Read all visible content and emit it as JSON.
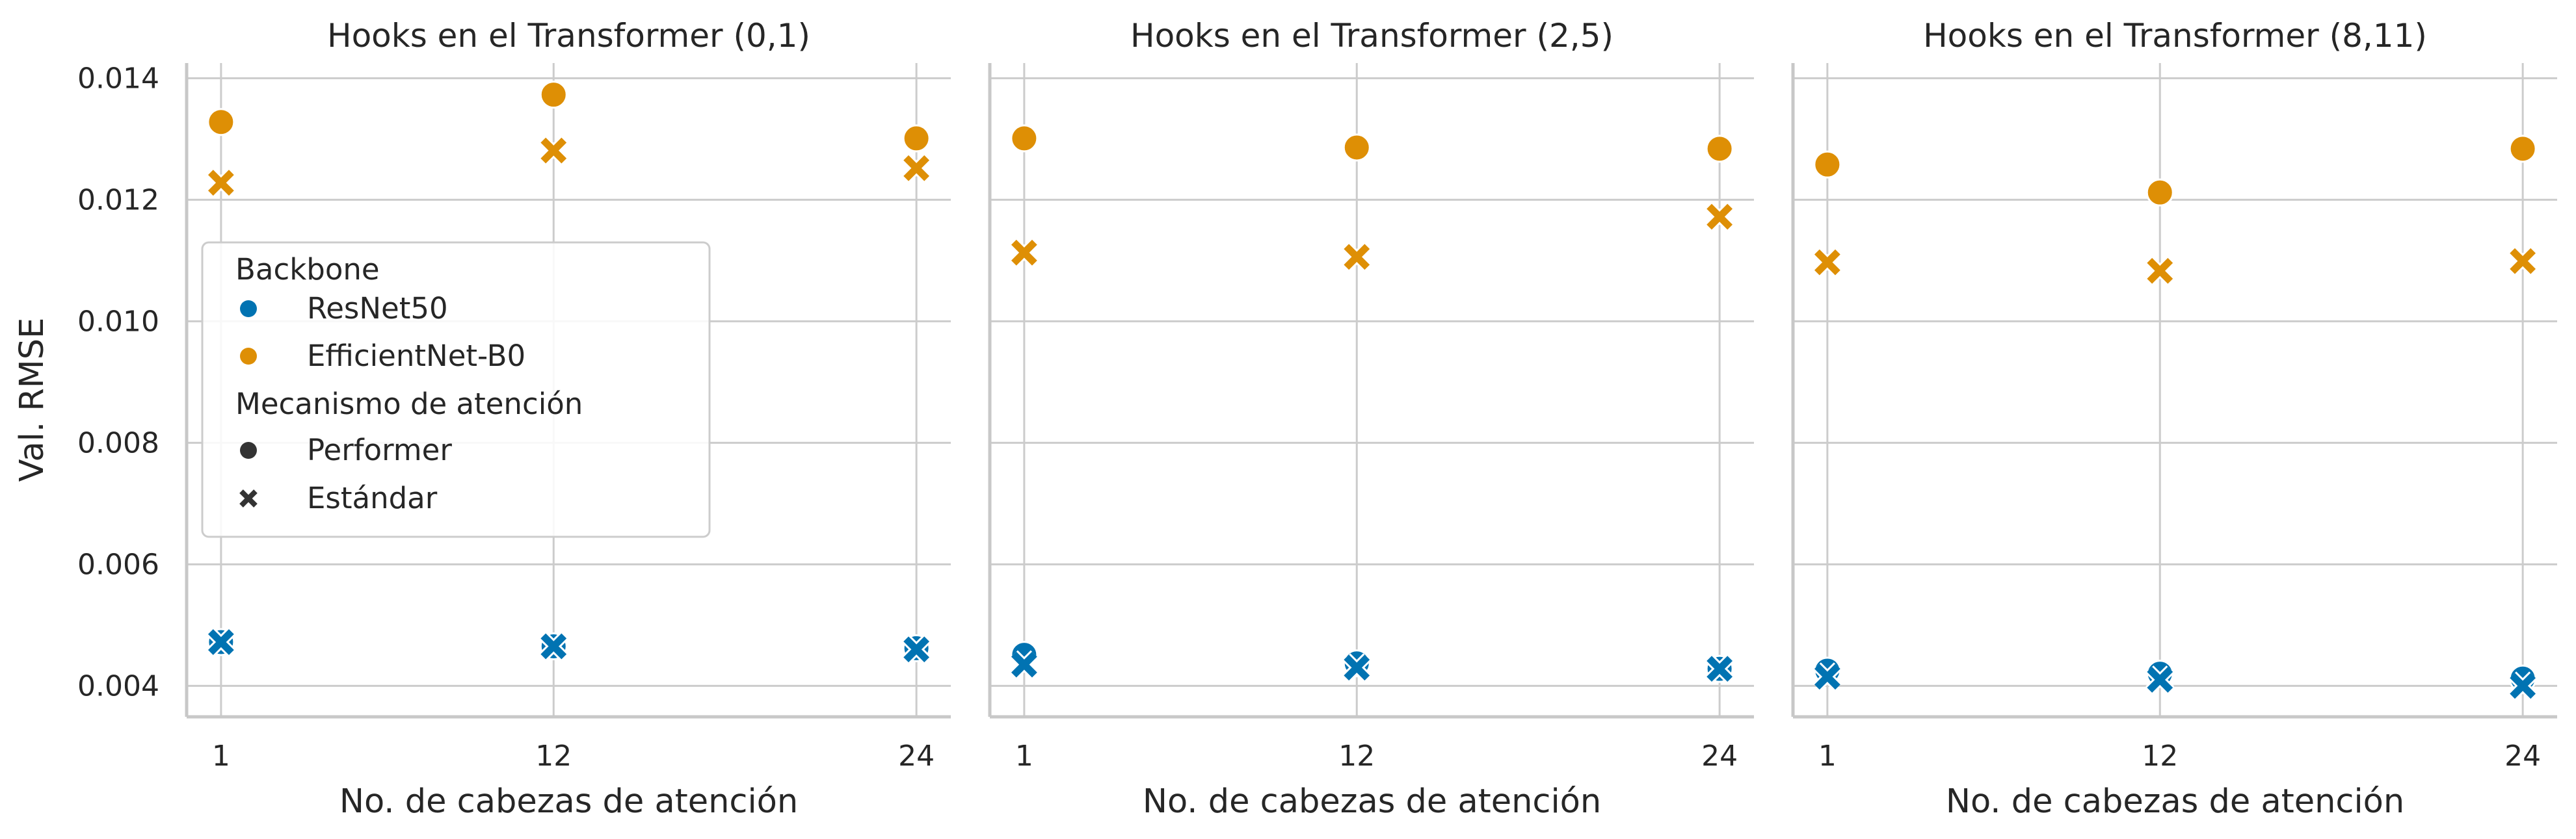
{
  "chart_data": {
    "type": "scatter",
    "ylabel": "Val. RMSE",
    "xlabel": "No. de cabezas de atención",
    "x_ticks": [
      1,
      12,
      24
    ],
    "y_ticks": [
      0.004,
      0.006,
      0.008,
      0.01,
      0.012,
      0.014
    ],
    "y_tick_labels": [
      "0.004",
      "0.006",
      "0.008",
      "0.010",
      "0.012",
      "0.014"
    ],
    "ylim": [
      0.00349,
      0.01425
    ],
    "grid": true,
    "colors": {
      "ResNet50": "#0173b2",
      "EfficientNet-B0": "#de8f05"
    },
    "legend": {
      "placement": "inside-left of first panel",
      "hue_title": "Backbone",
      "hue_items": [
        {
          "label": "ResNet50",
          "color": "#0173b2"
        },
        {
          "label": "EfficientNet-B0",
          "color": "#de8f05"
        }
      ],
      "style_title": "Mecanismo de atención",
      "style_items": [
        {
          "label": "Performer",
          "marker": "circle"
        },
        {
          "label": "Estándar",
          "marker": "x"
        }
      ]
    },
    "panels": [
      {
        "title": "Hooks en el Transformer (0,1)",
        "series": [
          {
            "backbone": "EfficientNet-B0",
            "mechanism": "Performer",
            "x": [
              1,
              12,
              24
            ],
            "y": [
              0.01328,
              0.01373,
              0.01301
            ]
          },
          {
            "backbone": "EfficientNet-B0",
            "mechanism": "Estándar",
            "x": [
              1,
              12,
              24
            ],
            "y": [
              0.01228,
              0.01281,
              0.01252
            ]
          },
          {
            "backbone": "ResNet50",
            "mechanism": "Performer",
            "x": [
              1,
              12,
              24
            ],
            "y": [
              0.00472,
              0.00465,
              0.00462
            ]
          },
          {
            "backbone": "ResNet50",
            "mechanism": "Estándar",
            "x": [
              1,
              12,
              24
            ],
            "y": [
              0.00472,
              0.00465,
              0.0046
            ]
          }
        ]
      },
      {
        "title": "Hooks en el Transformer (2,5)",
        "series": [
          {
            "backbone": "EfficientNet-B0",
            "mechanism": "Performer",
            "x": [
              1,
              12,
              24
            ],
            "y": [
              0.01301,
              0.01286,
              0.01284
            ]
          },
          {
            "backbone": "EfficientNet-B0",
            "mechanism": "Estándar",
            "x": [
              1,
              12,
              24
            ],
            "y": [
              0.01113,
              0.01106,
              0.01172
            ]
          },
          {
            "backbone": "ResNet50",
            "mechanism": "Performer",
            "x": [
              1,
              12,
              24
            ],
            "y": [
              0.00451,
              0.00437,
              0.00428
            ]
          },
          {
            "backbone": "ResNet50",
            "mechanism": "Estándar",
            "x": [
              1,
              12,
              24
            ],
            "y": [
              0.00435,
              0.0043,
              0.00428
            ]
          }
        ]
      },
      {
        "title": "Hooks en el Transformer (8,11)",
        "series": [
          {
            "backbone": "EfficientNet-B0",
            "mechanism": "Performer",
            "x": [
              1,
              12,
              24
            ],
            "y": [
              0.01258,
              0.01212,
              0.01284
            ]
          },
          {
            "backbone": "EfficientNet-B0",
            "mechanism": "Estándar",
            "x": [
              1,
              12,
              24
            ],
            "y": [
              0.01097,
              0.01083,
              0.01099
            ]
          },
          {
            "backbone": "ResNet50",
            "mechanism": "Performer",
            "x": [
              1,
              12,
              24
            ],
            "y": [
              0.00425,
              0.0042,
              0.00412
            ]
          },
          {
            "backbone": "ResNet50",
            "mechanism": "Estándar",
            "x": [
              1,
              12,
              24
            ],
            "y": [
              0.00415,
              0.0041,
              0.004
            ]
          }
        ]
      }
    ]
  }
}
